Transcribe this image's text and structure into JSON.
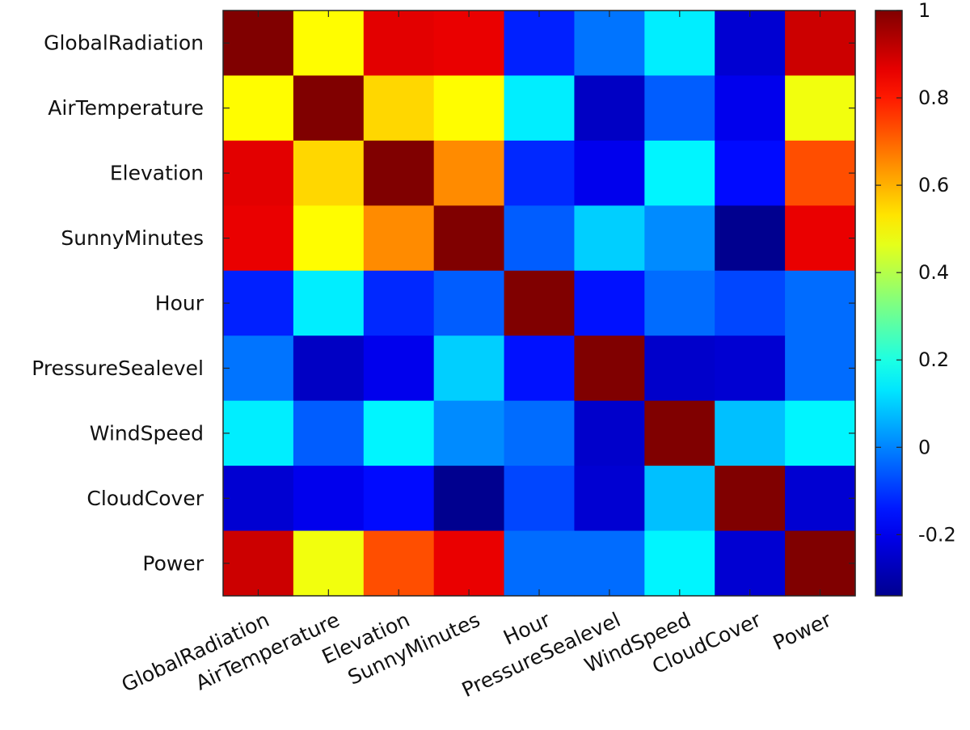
{
  "chart_data": {
    "type": "heatmap",
    "title": "",
    "xlabel": "",
    "ylabel": "",
    "labels": [
      "GlobalRadiation",
      "AirTemperature",
      "Elevation",
      "SunnyMinutes",
      "Hour",
      "PressureSealevel",
      "WindSpeed",
      "CloudCover",
      "Power"
    ],
    "matrix": [
      [
        1.0,
        0.5,
        0.87,
        0.86,
        -0.13,
        -0.02,
        0.14,
        -0.24,
        0.9
      ],
      [
        0.5,
        1.0,
        0.55,
        0.5,
        0.14,
        -0.26,
        -0.05,
        -0.2,
        0.48
      ],
      [
        0.87,
        0.55,
        1.0,
        0.65,
        -0.12,
        -0.2,
        0.15,
        -0.16,
        0.73
      ],
      [
        0.86,
        0.5,
        0.65,
        1.0,
        -0.05,
        0.1,
        0.01,
        -0.34,
        0.86
      ],
      [
        -0.13,
        0.14,
        -0.12,
        -0.05,
        1.0,
        -0.15,
        -0.03,
        -0.08,
        -0.03
      ],
      [
        -0.02,
        -0.26,
        -0.2,
        0.1,
        -0.15,
        1.0,
        -0.25,
        -0.24,
        -0.03
      ],
      [
        0.14,
        -0.05,
        0.15,
        0.01,
        -0.03,
        -0.25,
        1.0,
        0.08,
        0.15
      ],
      [
        -0.24,
        -0.2,
        -0.16,
        -0.34,
        -0.08,
        -0.24,
        0.08,
        1.0,
        -0.24
      ],
      [
        0.9,
        0.48,
        0.73,
        0.86,
        -0.03,
        -0.03,
        0.15,
        -0.24,
        1.0
      ]
    ],
    "colorbar": {
      "min": -0.34,
      "max": 1.0,
      "ticks": [
        -0.2,
        0,
        0.2,
        0.4,
        0.6,
        0.8,
        1
      ],
      "tick_labels": [
        "-0.2",
        "0",
        "0.2",
        "0.4",
        "0.6",
        "0.8",
        "1"
      ],
      "colormap": "jet"
    }
  }
}
